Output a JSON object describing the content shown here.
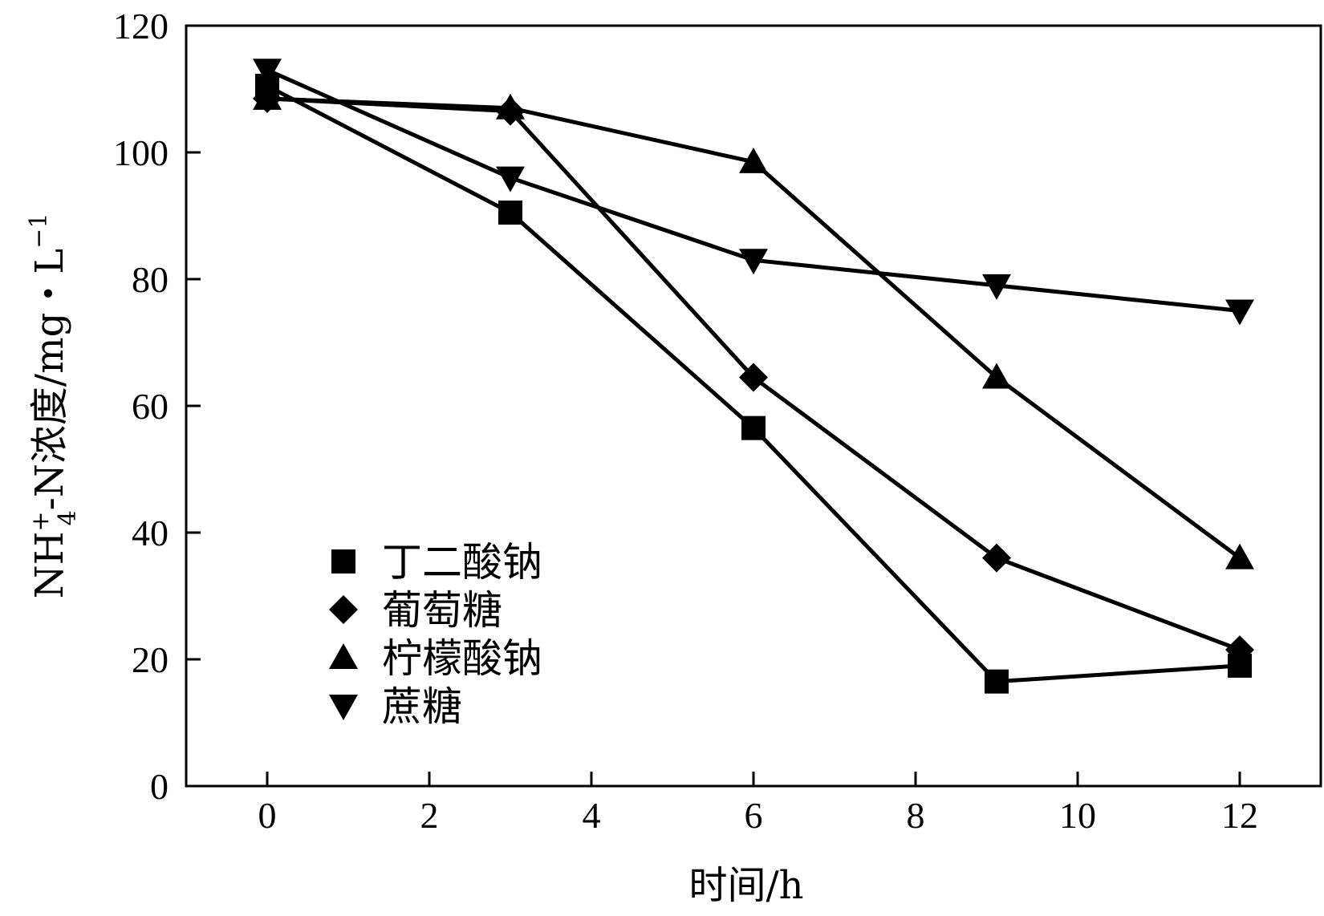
{
  "chart_data": {
    "type": "line",
    "title": "",
    "xlabel": "时间/h",
    "ylabel": {
      "prefix": "NH",
      "sup": "+",
      "sub": "4",
      "suffix": "-N浓度/mg・L",
      "sup2": "−1"
    },
    "x": [
      0,
      3,
      6,
      9,
      12
    ],
    "xlim": [
      -1,
      13
    ],
    "ylim": [
      0,
      120
    ],
    "xticks": [
      "0",
      "2",
      "4",
      "6",
      "8",
      "10",
      "12"
    ],
    "xtick_values": [
      0,
      2,
      4,
      6,
      8,
      10,
      12
    ],
    "yticks": [
      "0",
      "20",
      "40",
      "60",
      "80",
      "100",
      "120"
    ],
    "ytick_values": [
      0,
      20,
      40,
      60,
      80,
      100,
      120
    ],
    "grid": false,
    "legend_position": "bottom-left",
    "series": [
      {
        "name": "丁二酸钠",
        "marker": "square",
        "values": [
          110.5,
          90.5,
          56.5,
          16.5,
          19
        ]
      },
      {
        "name": "葡萄糖",
        "marker": "diamond",
        "values": [
          108.5,
          106.5,
          64.5,
          36,
          21.5
        ]
      },
      {
        "name": "柠檬酸钠",
        "marker": "triangle-up",
        "values": [
          108.5,
          107,
          98.5,
          64.5,
          36
        ]
      },
      {
        "name": "蔗糖",
        "marker": "triangle-down",
        "values": [
          113,
          96,
          83,
          79,
          75
        ]
      }
    ],
    "colors": {
      "line": "#000000",
      "marker": "#000000",
      "frame": "#000000"
    }
  }
}
